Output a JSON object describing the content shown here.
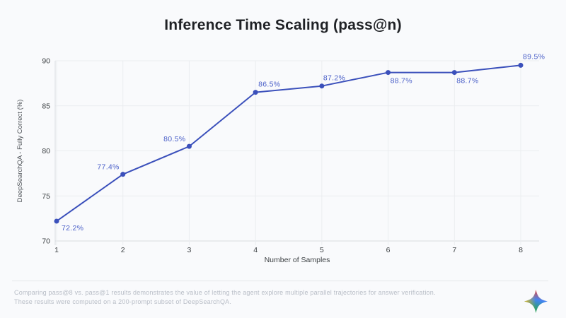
{
  "title": "Inference Time Scaling (pass@n)",
  "chart_data": {
    "type": "line",
    "x": [
      1,
      2,
      3,
      4,
      5,
      6,
      7,
      8
    ],
    "x_ticks": [
      "1",
      "2",
      "3",
      "4",
      "5",
      "6",
      "7",
      "8"
    ],
    "values": [
      72.2,
      77.4,
      80.5,
      86.5,
      87.2,
      88.7,
      88.7,
      89.5
    ],
    "point_labels": [
      "72.2%",
      "77.4%",
      "80.5%",
      "86.5%",
      "87.2%",
      "88.7%",
      "88.7%",
      "89.5%"
    ],
    "title": "Inference Time Scaling (pass@n)",
    "xlabel": "Number of Samples",
    "ylabel": "DeepSearchQA - Fully Correct (%)",
    "ylim": [
      70,
      90
    ],
    "y_ticks": [
      70,
      75,
      80,
      85,
      90
    ],
    "grid": true,
    "legend_position": "none",
    "colors": {
      "line": "#3b50bb",
      "marker": "#3b50bb",
      "point_label": "#4a5fc8",
      "tick_label": "#3c4043",
      "axis_title": "#4d5156",
      "gridline": "#ebedf0",
      "axis_line": "#d9dce0"
    }
  },
  "footer": {
    "line1": "Comparing pass@8 vs. pass@1 results demonstrates the value of letting the agent explore multiple parallel trajectories for answer verification.",
    "line2": "These results were computed on a 200-prompt subset of DeepSearchQA."
  },
  "branding": {
    "sparkle_icon": "gemini-sparkle-icon",
    "sparkle_colors": [
      "#ea4335",
      "#4285f4",
      "#34a853",
      "#fbbc05"
    ]
  }
}
